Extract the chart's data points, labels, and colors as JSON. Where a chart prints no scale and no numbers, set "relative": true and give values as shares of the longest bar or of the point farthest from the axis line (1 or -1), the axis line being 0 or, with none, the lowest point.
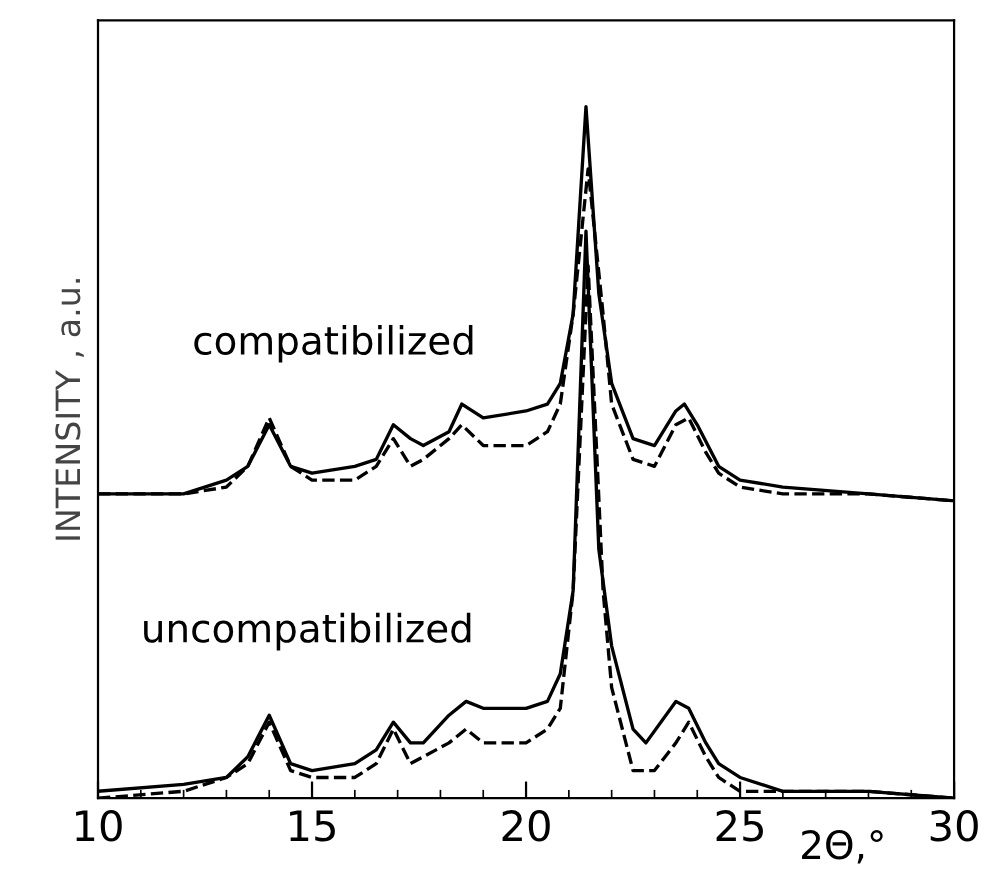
{
  "chart_data": {
    "type": "line",
    "relative": true,
    "xlabel": "2Θ,°",
    "ylabel": "INTENSITY , a.u.",
    "xlim": [
      10,
      30
    ],
    "xticks": [
      10,
      15,
      20,
      25,
      30
    ],
    "grid": false,
    "marker": "none",
    "series": [
      {
        "color": "#000000",
        "line_style": "solid",
        "x": [
          10,
          12,
          13,
          13.5,
          14,
          14.5,
          15,
          16,
          16.5,
          16.9,
          17.3,
          17.6,
          18.2,
          18.5,
          19,
          20,
          20.5,
          20.8,
          21.1,
          21.4,
          21.7,
          22,
          22.5,
          23,
          23.5,
          23.7,
          24,
          24.5,
          25,
          26,
          28,
          30
        ],
        "values": [
          0.44,
          0.44,
          0.46,
          0.48,
          0.54,
          0.48,
          0.47,
          0.48,
          0.49,
          0.54,
          0.52,
          0.51,
          0.53,
          0.57,
          0.55,
          0.56,
          0.57,
          0.6,
          0.7,
          1,
          0.73,
          0.6,
          0.52,
          0.51,
          0.56,
          0.57,
          0.54,
          0.48,
          0.46,
          0.45,
          0.44,
          0.43
        ]
      },
      {
        "color": "#000000",
        "line_style": "dashed",
        "x": [
          10,
          12,
          13,
          13.5,
          14,
          14.5,
          15,
          16,
          16.5,
          16.9,
          17.3,
          17.6,
          18.2,
          18.5,
          19,
          20,
          20.5,
          20.8,
          21.1,
          21.45,
          21.8,
          22,
          22.5,
          23,
          23.5,
          23.8,
          24.2,
          24.5,
          25,
          26,
          28,
          30
        ],
        "values": [
          0.44,
          0.44,
          0.45,
          0.48,
          0.55,
          0.48,
          0.46,
          0.46,
          0.48,
          0.52,
          0.48,
          0.49,
          0.52,
          0.54,
          0.51,
          0.51,
          0.53,
          0.57,
          0.7,
          0.91,
          0.7,
          0.57,
          0.49,
          0.48,
          0.54,
          0.55,
          0.5,
          0.47,
          0.45,
          0.44,
          0.44,
          0.43
        ]
      },
      {
        "color": "#000000",
        "line_style": "solid",
        "x": [
          10,
          12,
          13,
          13.5,
          14,
          14.5,
          15,
          16,
          16.5,
          16.9,
          17.3,
          17.6,
          18.2,
          18.6,
          19,
          20,
          20.5,
          20.8,
          21.1,
          21.4,
          21.7,
          22,
          22.5,
          22.8,
          23.5,
          23.8,
          24.2,
          24.5,
          25,
          26,
          28,
          30
        ],
        "values": [
          0.01,
          0.02,
          0.03,
          0.06,
          0.12,
          0.05,
          0.04,
          0.05,
          0.07,
          0.11,
          0.08,
          0.08,
          0.12,
          0.14,
          0.13,
          0.13,
          0.14,
          0.18,
          0.3,
          0.82,
          0.36,
          0.22,
          0.1,
          0.08,
          0.14,
          0.13,
          0.08,
          0.05,
          0.03,
          0.01,
          0.01,
          0.0
        ]
      },
      {
        "color": "#000000",
        "line_style": "dashed",
        "x": [
          10,
          12,
          13,
          13.5,
          14,
          14.5,
          15,
          16,
          16.5,
          16.9,
          17.3,
          17.6,
          18.2,
          18.6,
          19,
          20,
          20.5,
          20.8,
          21.1,
          21.45,
          21.8,
          22,
          22.5,
          23,
          23.5,
          23.8,
          24.2,
          24.5,
          25,
          26,
          28,
          30
        ],
        "values": [
          0.0,
          0.01,
          0.03,
          0.05,
          0.11,
          0.04,
          0.03,
          0.03,
          0.05,
          0.1,
          0.05,
          0.06,
          0.08,
          0.1,
          0.08,
          0.08,
          0.1,
          0.13,
          0.3,
          0.77,
          0.3,
          0.16,
          0.04,
          0.04,
          0.08,
          0.11,
          0.06,
          0.03,
          0.01,
          0.01,
          0.01,
          0.0
        ]
      }
    ],
    "annotations": [
      "compatibilized",
      "uncompatibilized"
    ]
  }
}
